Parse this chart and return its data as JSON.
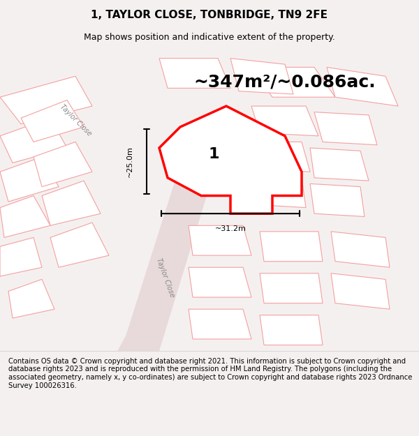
{
  "title": "1, TAYLOR CLOSE, TONBRIDGE, TN9 2FE",
  "subtitle": "Map shows position and indicative extent of the property.",
  "area_text": "~347m²/~0.086ac.",
  "dim_horizontal": "~31.2m",
  "dim_vertical": "~25.0m",
  "plot_label": "1",
  "footer": "Contains OS data © Crown copyright and database right 2021. This information is subject to Crown copyright and database rights 2023 and is reproduced with the permission of HM Land Registry. The polygons (including the associated geometry, namely x, y co-ordinates) are subject to Crown copyright and database rights 2023 Ordnance Survey 100026316.",
  "bg_color": "#f5f0f0",
  "map_bg": "#ffffff",
  "plot_fill": "#ffffff",
  "plot_outline": "#ff0000",
  "building_fill": "#e0e0e0",
  "road_color": "#cccccc",
  "other_outline": "#f4a0a0",
  "title_fontsize": 11,
  "subtitle_fontsize": 9,
  "area_fontsize": 18,
  "label_fontsize": 16,
  "footer_fontsize": 7.2,
  "map_extent": [
    0,
    100,
    0,
    100
  ]
}
